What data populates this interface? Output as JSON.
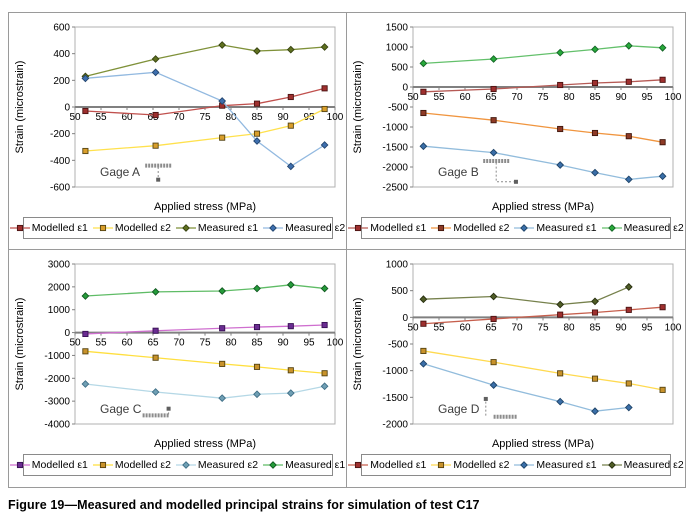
{
  "caption": "Figure 19—Measured and modelled principal strains for simulation of test C17",
  "chart_data": [
    {
      "type": "line",
      "gage_label": "Gage A",
      "xlabel": "Applied stress (MPa)",
      "ylabel": "Strain (microstrain)",
      "xlim": [
        50,
        100
      ],
      "xtick": 5,
      "ylim": [
        -600,
        600
      ],
      "ytick": 200,
      "x": [
        52,
        65.5,
        78.3,
        85,
        91.5,
        98
      ],
      "series": [
        {
          "name": "Modelled ε1",
          "marker": "square",
          "line": "#c0504d",
          "fill": "#9e2f2e",
          "stroke": "#4a1312",
          "y": [
            -30,
            -60,
            10,
            25,
            75,
            140
          ]
        },
        {
          "name": "Modelled ε2",
          "marker": "square",
          "line": "#ffe14d",
          "fill": "#d99e2b",
          "stroke": "#554414",
          "y": [
            -330,
            -290,
            -230,
            -200,
            -140,
            -15
          ]
        },
        {
          "name": "Measured ε1",
          "marker": "diamond",
          "line": "#7f9139",
          "fill": "#5f7020",
          "stroke": "#36420f",
          "y": [
            230,
            360,
            465,
            420,
            430,
            450
          ]
        },
        {
          "name": "Measured ε2",
          "marker": "diamond",
          "line": "#92b9e0",
          "fill": "#3e6fae",
          "stroke": "#23456e",
          "y": [
            215,
            260,
            45,
            -255,
            -445,
            -285
          ]
        }
      ],
      "gauge_icon": {
        "bar": [
          [
            63.5,
            -440
          ],
          [
            68.5,
            -440
          ]
        ],
        "dash": [
          [
            66,
            -450
          ],
          [
            66,
            -525
          ]
        ],
        "dot": [
          66,
          -545
        ]
      }
    },
    {
      "type": "line",
      "gage_label": "Gage B",
      "xlabel": "Applied stress (MPa)",
      "ylabel": "Strain (microstrain)",
      "xlim": [
        50,
        100
      ],
      "xtick": 5,
      "ylim": [
        -2500,
        1500
      ],
      "ytick": 500,
      "x": [
        52,
        65.5,
        78.3,
        85,
        91.5,
        98
      ],
      "series": [
        {
          "name": "Modelled ε1",
          "marker": "square",
          "line": "#b65a55",
          "fill": "#9e2f2e",
          "stroke": "#4a1312",
          "y": [
            -120,
            -50,
            50,
            100,
            130,
            180
          ]
        },
        {
          "name": "Modelled ε2",
          "marker": "square",
          "line": "#f0953f",
          "fill": "#8e3a26",
          "stroke": "#40170d",
          "y": [
            -650,
            -830,
            -1050,
            -1150,
            -1230,
            -1380
          ]
        },
        {
          "name": "Measured ε1",
          "marker": "diamond",
          "line": "#92bcdc",
          "fill": "#3a6ea8",
          "stroke": "#1f4468",
          "y": [
            -1480,
            -1640,
            -1950,
            -2140,
            -2310,
            -2230
          ]
        },
        {
          "name": "Measured ε2",
          "marker": "diamond",
          "line": "#63c06b",
          "fill": "#27a93a",
          "stroke": "#136325",
          "y": [
            590,
            700,
            860,
            940,
            1030,
            980
          ]
        }
      ],
      "gauge_icon": {
        "bar": [
          [
            63.5,
            -1850
          ],
          [
            68.5,
            -1850
          ]
        ],
        "dash": [
          [
            66,
            -1890
          ],
          [
            66,
            -2370
          ],
          [
            69.3,
            -2370
          ]
        ],
        "dot": [
          69.8,
          -2370
        ]
      }
    },
    {
      "type": "line",
      "gage_label": "Gage C",
      "xlabel": "Applied stress (MPa)",
      "ylabel": "Strain (microstrain)",
      "xlim": [
        50,
        100
      ],
      "xtick": 5,
      "ylim": [
        -4000,
        3000
      ],
      "ytick": 1000,
      "x": [
        52,
        65.5,
        78.3,
        85,
        91.5,
        98
      ],
      "series": [
        {
          "name": "Modelled ε1",
          "marker": "square",
          "line": "#cf6fcf",
          "fill": "#6a2c91",
          "stroke": "#371053",
          "y": [
            -60,
            80,
            190,
            240,
            280,
            330
          ]
        },
        {
          "name": "Modelled ε2",
          "marker": "square",
          "line": "#ffdf3f",
          "fill": "#c8922b",
          "stroke": "#554310",
          "y": [
            -820,
            -1100,
            -1370,
            -1500,
            -1650,
            -1780
          ]
        },
        {
          "name": "Measured ε2",
          "marker": "diamond",
          "line": "#b5d8e6",
          "fill": "#6f9fb4",
          "stroke": "#3f6e86",
          "y": [
            -2250,
            -2600,
            -2870,
            -2700,
            -2650,
            -2350
          ]
        },
        {
          "name": "Measured ε1",
          "marker": "diamond",
          "line": "#5fbc66",
          "fill": "#259b3a",
          "stroke": "#115820",
          "y": [
            1600,
            1780,
            1820,
            1930,
            2090,
            1930
          ]
        }
      ],
      "gauge_icon": {
        "bar": [
          [
            63,
            -3620
          ],
          [
            68,
            -3620
          ]
        ],
        "dash": [
          [
            68,
            -3580
          ],
          [
            68,
            -3400
          ]
        ],
        "dot": [
          68,
          -3330
        ]
      }
    },
    {
      "type": "line",
      "gage_label": "Gage D",
      "xlabel": "Applied stress (MPa)",
      "ylabel": "Strain (microstrain)",
      "xlim": [
        50,
        100
      ],
      "xtick": 5,
      "ylim": [
        -2000,
        1000
      ],
      "ytick": 500,
      "x": [
        52,
        65.5,
        78.3,
        85,
        91.5,
        98
      ],
      "series": [
        {
          "name": "Modelled ε1",
          "marker": "square",
          "line": "#c65f4d",
          "fill": "#9e2f2e",
          "stroke": "#4a1312",
          "y": [
            -120,
            -30,
            50,
            90,
            140,
            190
          ]
        },
        {
          "name": "Modelled ε2",
          "marker": "square",
          "line": "#ffda50",
          "fill": "#c8922b",
          "stroke": "#554310",
          "y": [
            -630,
            -840,
            -1050,
            -1150,
            -1240,
            -1360
          ]
        },
        {
          "name": "Measured ε1",
          "marker": "diamond",
          "line": "#92bcdc",
          "fill": "#3a6ea8",
          "stroke": "#1f4468",
          "x": [
            52,
            65.5,
            78.3,
            85,
            91.5
          ],
          "y": [
            -870,
            -1270,
            -1580,
            -1760,
            -1690
          ]
        },
        {
          "name": "Measured ε2",
          "marker": "diamond",
          "line": "#76814c",
          "fill": "#4f5c26",
          "stroke": "#272e0f",
          "x": [
            52,
            65.5,
            78.3,
            85,
            91.5
          ],
          "y": [
            340,
            390,
            240,
            300,
            570
          ]
        }
      ],
      "gauge_icon": {
        "bar": [
          [
            65.5,
            -1865
          ],
          [
            70,
            -1865
          ]
        ],
        "dash": [
          [
            64,
            -1580
          ],
          [
            64,
            -1850
          ]
        ],
        "dot": [
          64,
          -1530
        ]
      }
    }
  ]
}
